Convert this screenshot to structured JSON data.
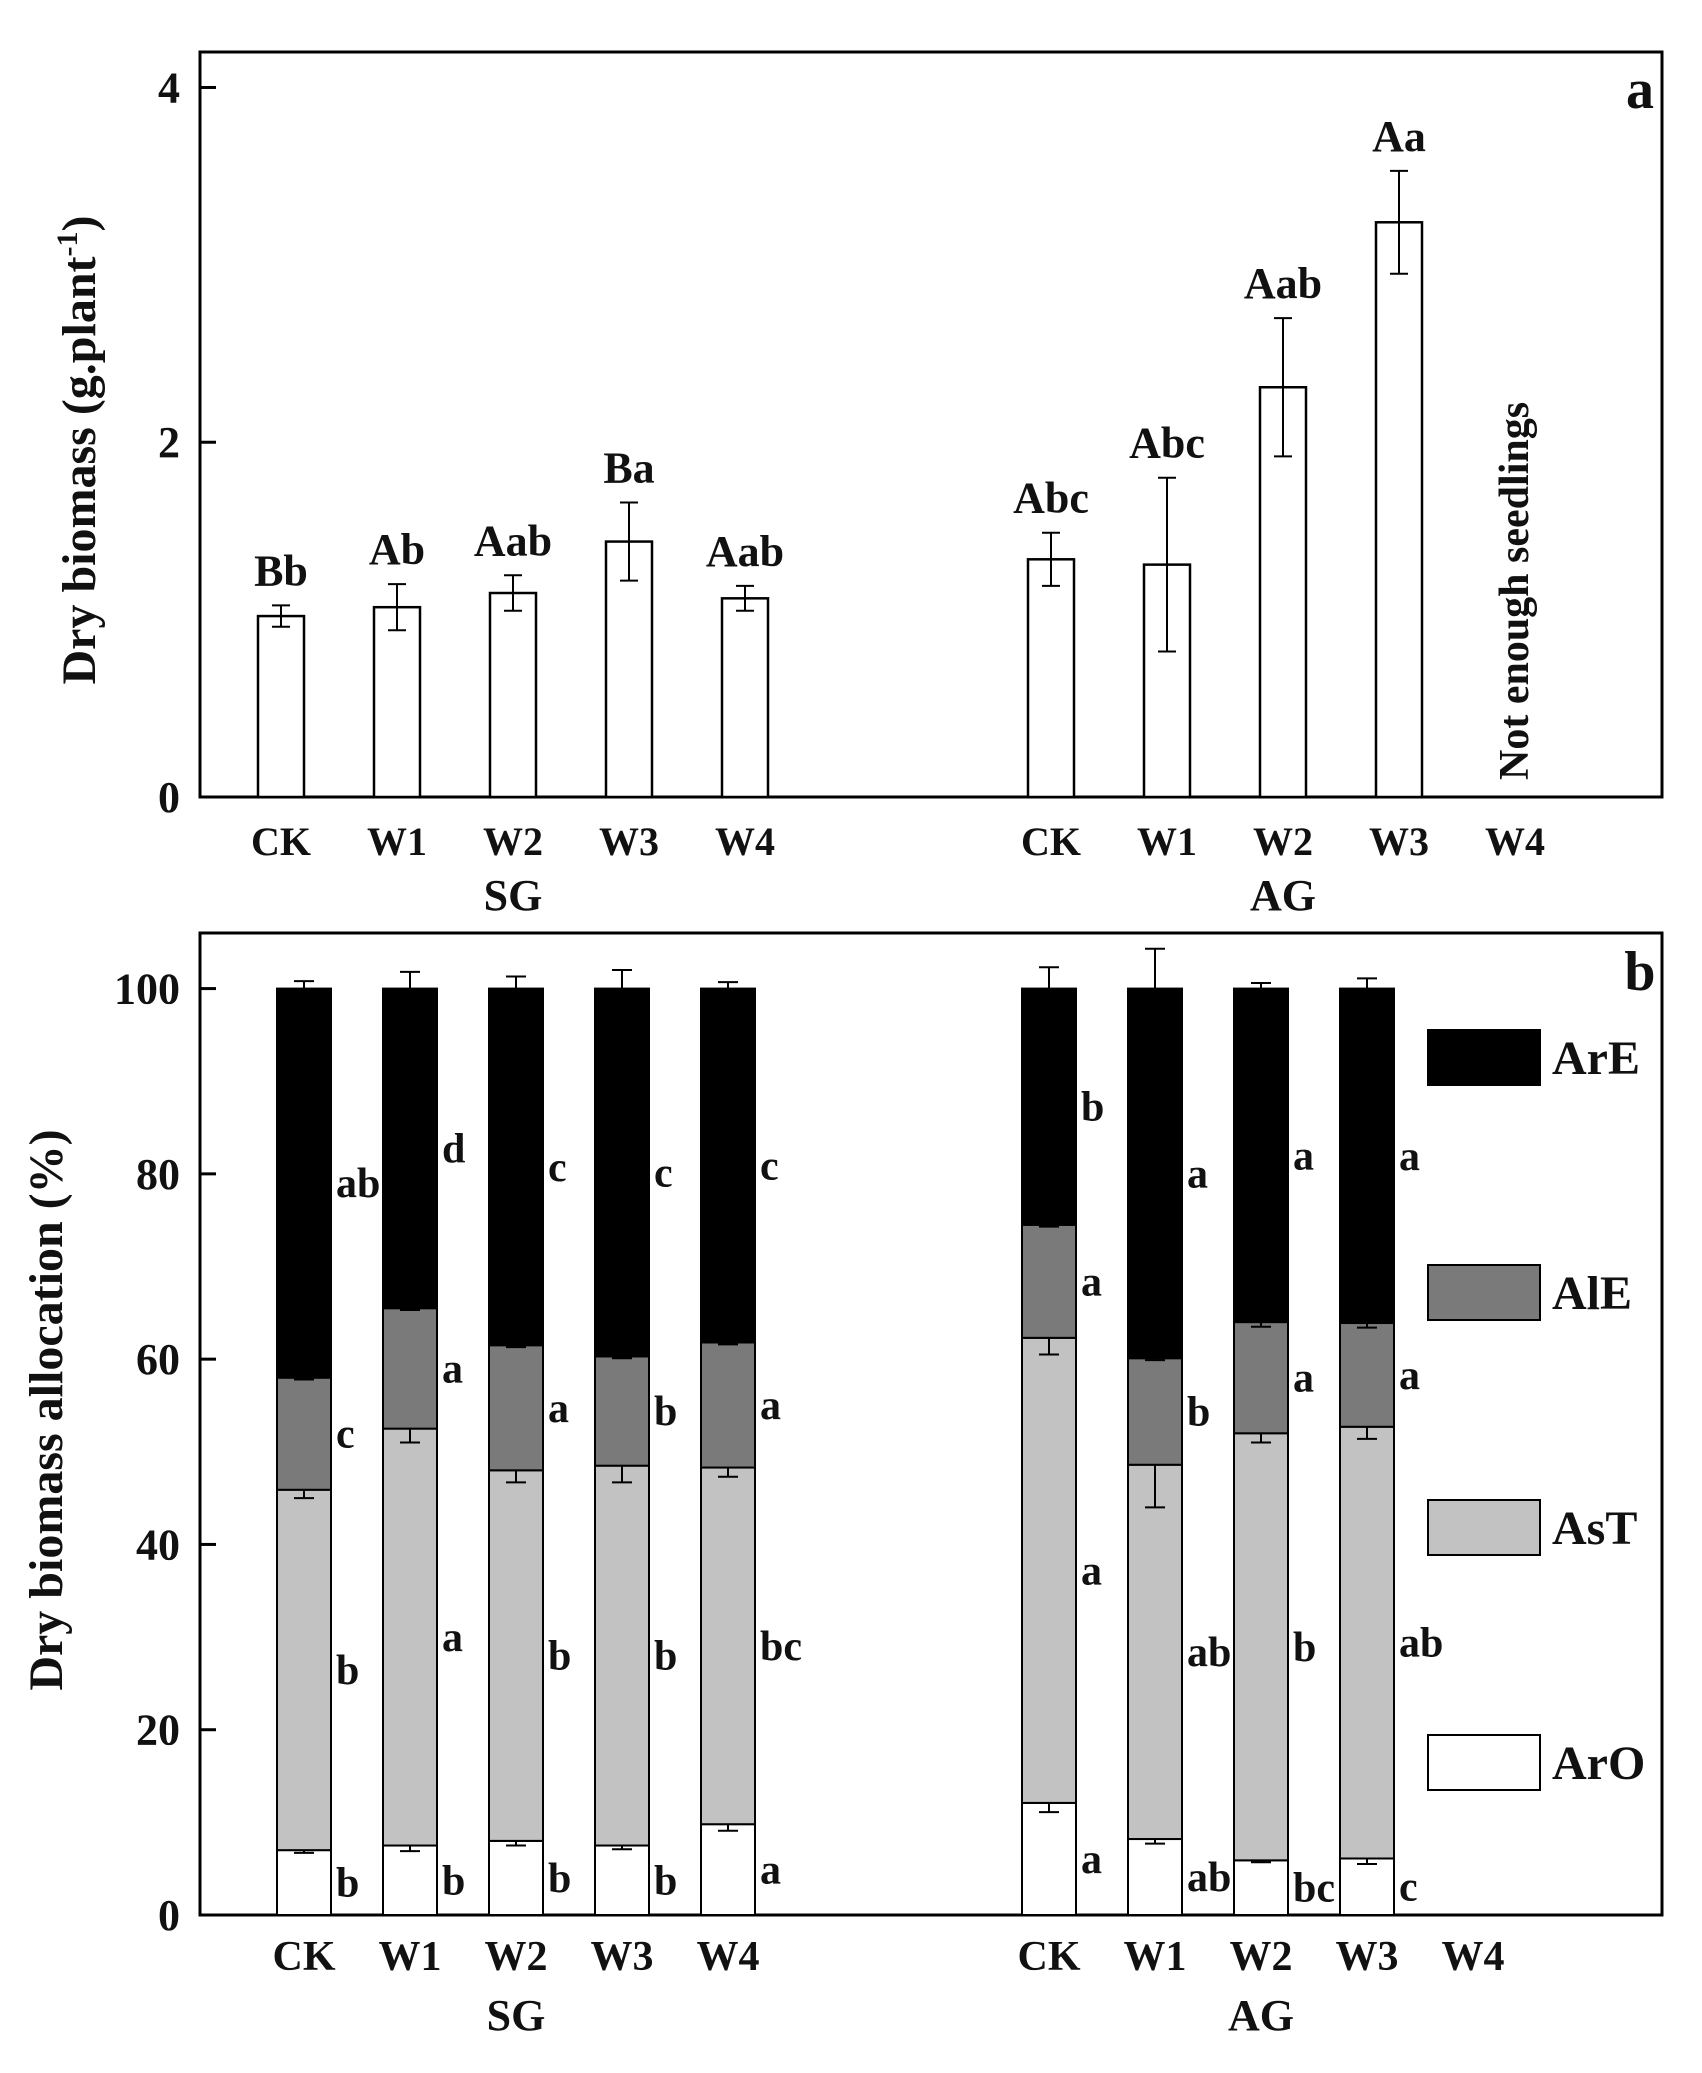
{
  "figure": {
    "panel_a_letter": "a",
    "panel_b_letter": "b",
    "note_a": "Not enough seedlings"
  },
  "chart_data": [
    {
      "type": "bar",
      "panel": "a",
      "ylabel": "Dry biomass (g.plant",
      "ylabel_sup": "-1",
      "ylabel_tail": ")",
      "ylim": [
        0,
        4.2
      ],
      "yticks": [
        0,
        2,
        4
      ],
      "groups": [
        {
          "name": "SG",
          "categories": [
            "CK",
            "W1",
            "W2",
            "W3",
            "W4"
          ],
          "values": [
            1.02,
            1.07,
            1.15,
            1.44,
            1.12
          ],
          "errors": [
            0.06,
            0.13,
            0.1,
            0.22,
            0.07
          ],
          "letters": [
            "Bb",
            "Ab",
            "Aab",
            "Ba",
            "Aab"
          ]
        },
        {
          "name": "AG",
          "categories": [
            "CK",
            "W1",
            "W2",
            "W3",
            "W4"
          ],
          "values": [
            1.34,
            1.31,
            2.31,
            3.24,
            null
          ],
          "errors": [
            0.15,
            0.49,
            0.39,
            0.29,
            null
          ],
          "letters": [
            "Abc",
            "Abc",
            "Aab",
            "Aa",
            ""
          ]
        }
      ],
      "grid": false,
      "colors": {
        "bar_fill": "#ffffff",
        "bar_stroke": "#000000"
      }
    },
    {
      "type": "bar",
      "stacked": true,
      "panel": "b",
      "ylabel": "Dry biomass allocation (%)",
      "ylim": [
        0,
        106
      ],
      "yticks": [
        0,
        20,
        40,
        60,
        80,
        100
      ],
      "legend": {
        "placement": "right",
        "items": [
          {
            "label": "ArE",
            "color": "#000000"
          },
          {
            "label": "AlE",
            "color": "#7a7a7a"
          },
          {
            "label": "AsT",
            "color": "#c2c2c2"
          },
          {
            "label": "ArO",
            "color": "#ffffff"
          }
        ]
      },
      "groups": [
        {
          "name": "SG",
          "categories": [
            "CK",
            "W1",
            "W2",
            "W3",
            "W4"
          ],
          "series": [
            {
              "name": "ArO",
              "values": [
                7.0,
                7.5,
                8.0,
                7.5,
                9.8
              ],
              "errors": [
                0.3,
                0.6,
                0.5,
                0.4,
                0.7
              ],
              "letters": [
                "b",
                "b",
                "b",
                "b",
                "a"
              ]
            },
            {
              "name": "AsT",
              "values": [
                38.9,
                45.0,
                40.0,
                41.0,
                38.5
              ],
              "errors": [
                0.9,
                1.5,
                1.3,
                1.8,
                1.0
              ],
              "letters": [
                "b",
                "a",
                "b",
                "b",
                "bc"
              ]
            },
            {
              "name": "AlE",
              "values": [
                12.1,
                13.0,
                13.5,
                11.8,
                13.5
              ],
              "errors": [
                0.2,
                0.2,
                0.2,
                0.2,
                0.2
              ],
              "letters": [
                "c",
                "a",
                "a",
                "b",
                "a"
              ]
            },
            {
              "name": "ArE",
              "values": [
                42.0,
                34.5,
                38.5,
                39.7,
                38.2
              ],
              "errors": [
                0.8,
                1.8,
                1.3,
                2.0,
                0.7
              ],
              "letters": [
                "ab",
                "d",
                "c",
                "c",
                "c"
              ]
            }
          ]
        },
        {
          "name": "AG",
          "categories": [
            "CK",
            "W1",
            "W2",
            "W3",
            "W4"
          ],
          "series": [
            {
              "name": "ArO",
              "values": [
                12.1,
                8.2,
                5.9,
                6.1,
                null
              ],
              "errors": [
                1.0,
                0.5,
                0.2,
                0.6,
                null
              ],
              "letters": [
                "a",
                "ab",
                "bc",
                "c",
                ""
              ]
            },
            {
              "name": "AsT",
              "values": [
                50.2,
                40.4,
                46.1,
                46.6,
                null
              ],
              "errors": [
                1.8,
                4.6,
                1.0,
                1.3,
                null
              ],
              "letters": [
                "a",
                "ab",
                "b",
                "ab",
                ""
              ]
            },
            {
              "name": "AlE",
              "values": [
                12.2,
                11.5,
                12.0,
                11.2,
                null
              ],
              "errors": [
                0.2,
                0.2,
                0.5,
                0.5,
                null
              ],
              "letters": [
                "a",
                "b",
                "a",
                "a",
                ""
              ]
            },
            {
              "name": "ArE",
              "values": [
                25.5,
                39.9,
                36.0,
                36.1,
                null
              ],
              "errors": [
                2.3,
                4.3,
                0.6,
                1.1,
                null
              ],
              "letters": [
                "b",
                "a",
                "a",
                "a",
                ""
              ]
            }
          ]
        }
      ],
      "grid": false
    }
  ]
}
